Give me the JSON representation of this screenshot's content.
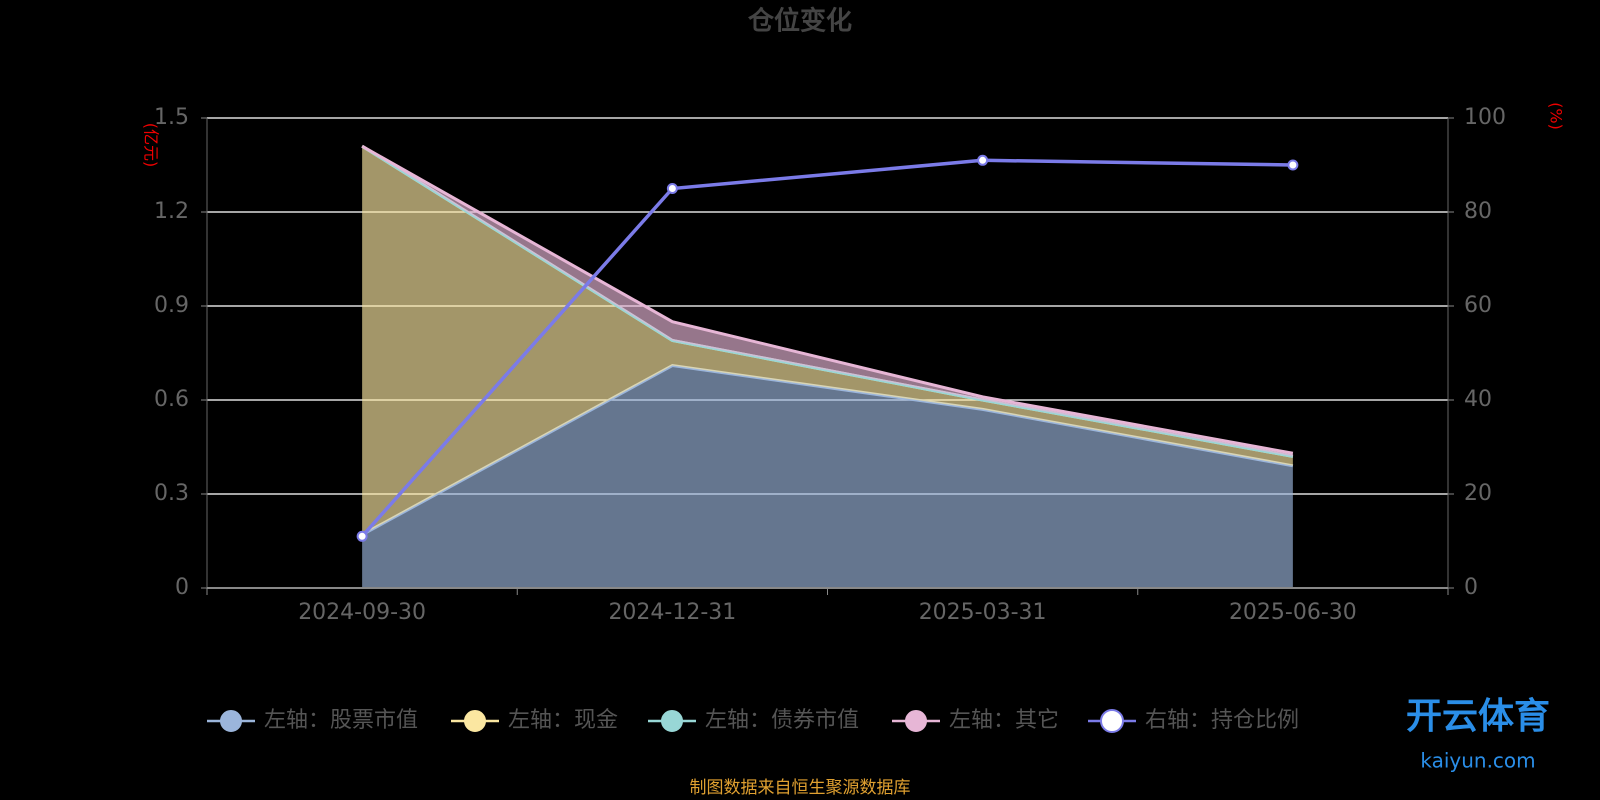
{
  "chart_data": {
    "type": "stacked-area-line",
    "title": "仓位变化",
    "y_label": "(亿元)",
    "y2_label": "(%)",
    "categories": [
      "2024-09-30",
      "2024-12-31",
      "2025-03-31",
      "2025-06-30"
    ],
    "series": [
      {
        "name": "左轴：股票市值",
        "color": "#9bb5db",
        "values": [
          0.17,
          0.71,
          0.57,
          0.39
        ]
      },
      {
        "name": "左轴：现金",
        "color": "#fbe7a1",
        "values": [
          1.24,
          0.08,
          0.03,
          0.03
        ]
      },
      {
        "name": "左轴：债券市值",
        "color": "#98d7d6",
        "values": [
          0,
          0,
          0,
          0
        ]
      },
      {
        "name": "左轴：其它",
        "color": "#e7b6d6",
        "values": [
          0,
          0.06,
          0.01,
          0.01
        ]
      },
      {
        "name": "右轴：持仓比例",
        "color": "#7b7be8",
        "axis": "y2",
        "values": [
          11,
          85,
          91,
          90
        ]
      }
    ],
    "ylim": [
      0,
      1.5
    ],
    "yticks": [
      0,
      0.3,
      0.6,
      0.9,
      1.2,
      1.5
    ],
    "y2lim": [
      0,
      100
    ],
    "y2ticks": [
      0,
      20,
      40,
      60,
      80,
      100
    ],
    "grid": true,
    "source": "制图数据来自恒生聚源数据库",
    "watermark": {
      "title": "开云体育",
      "url": "kaiyun.com"
    }
  }
}
